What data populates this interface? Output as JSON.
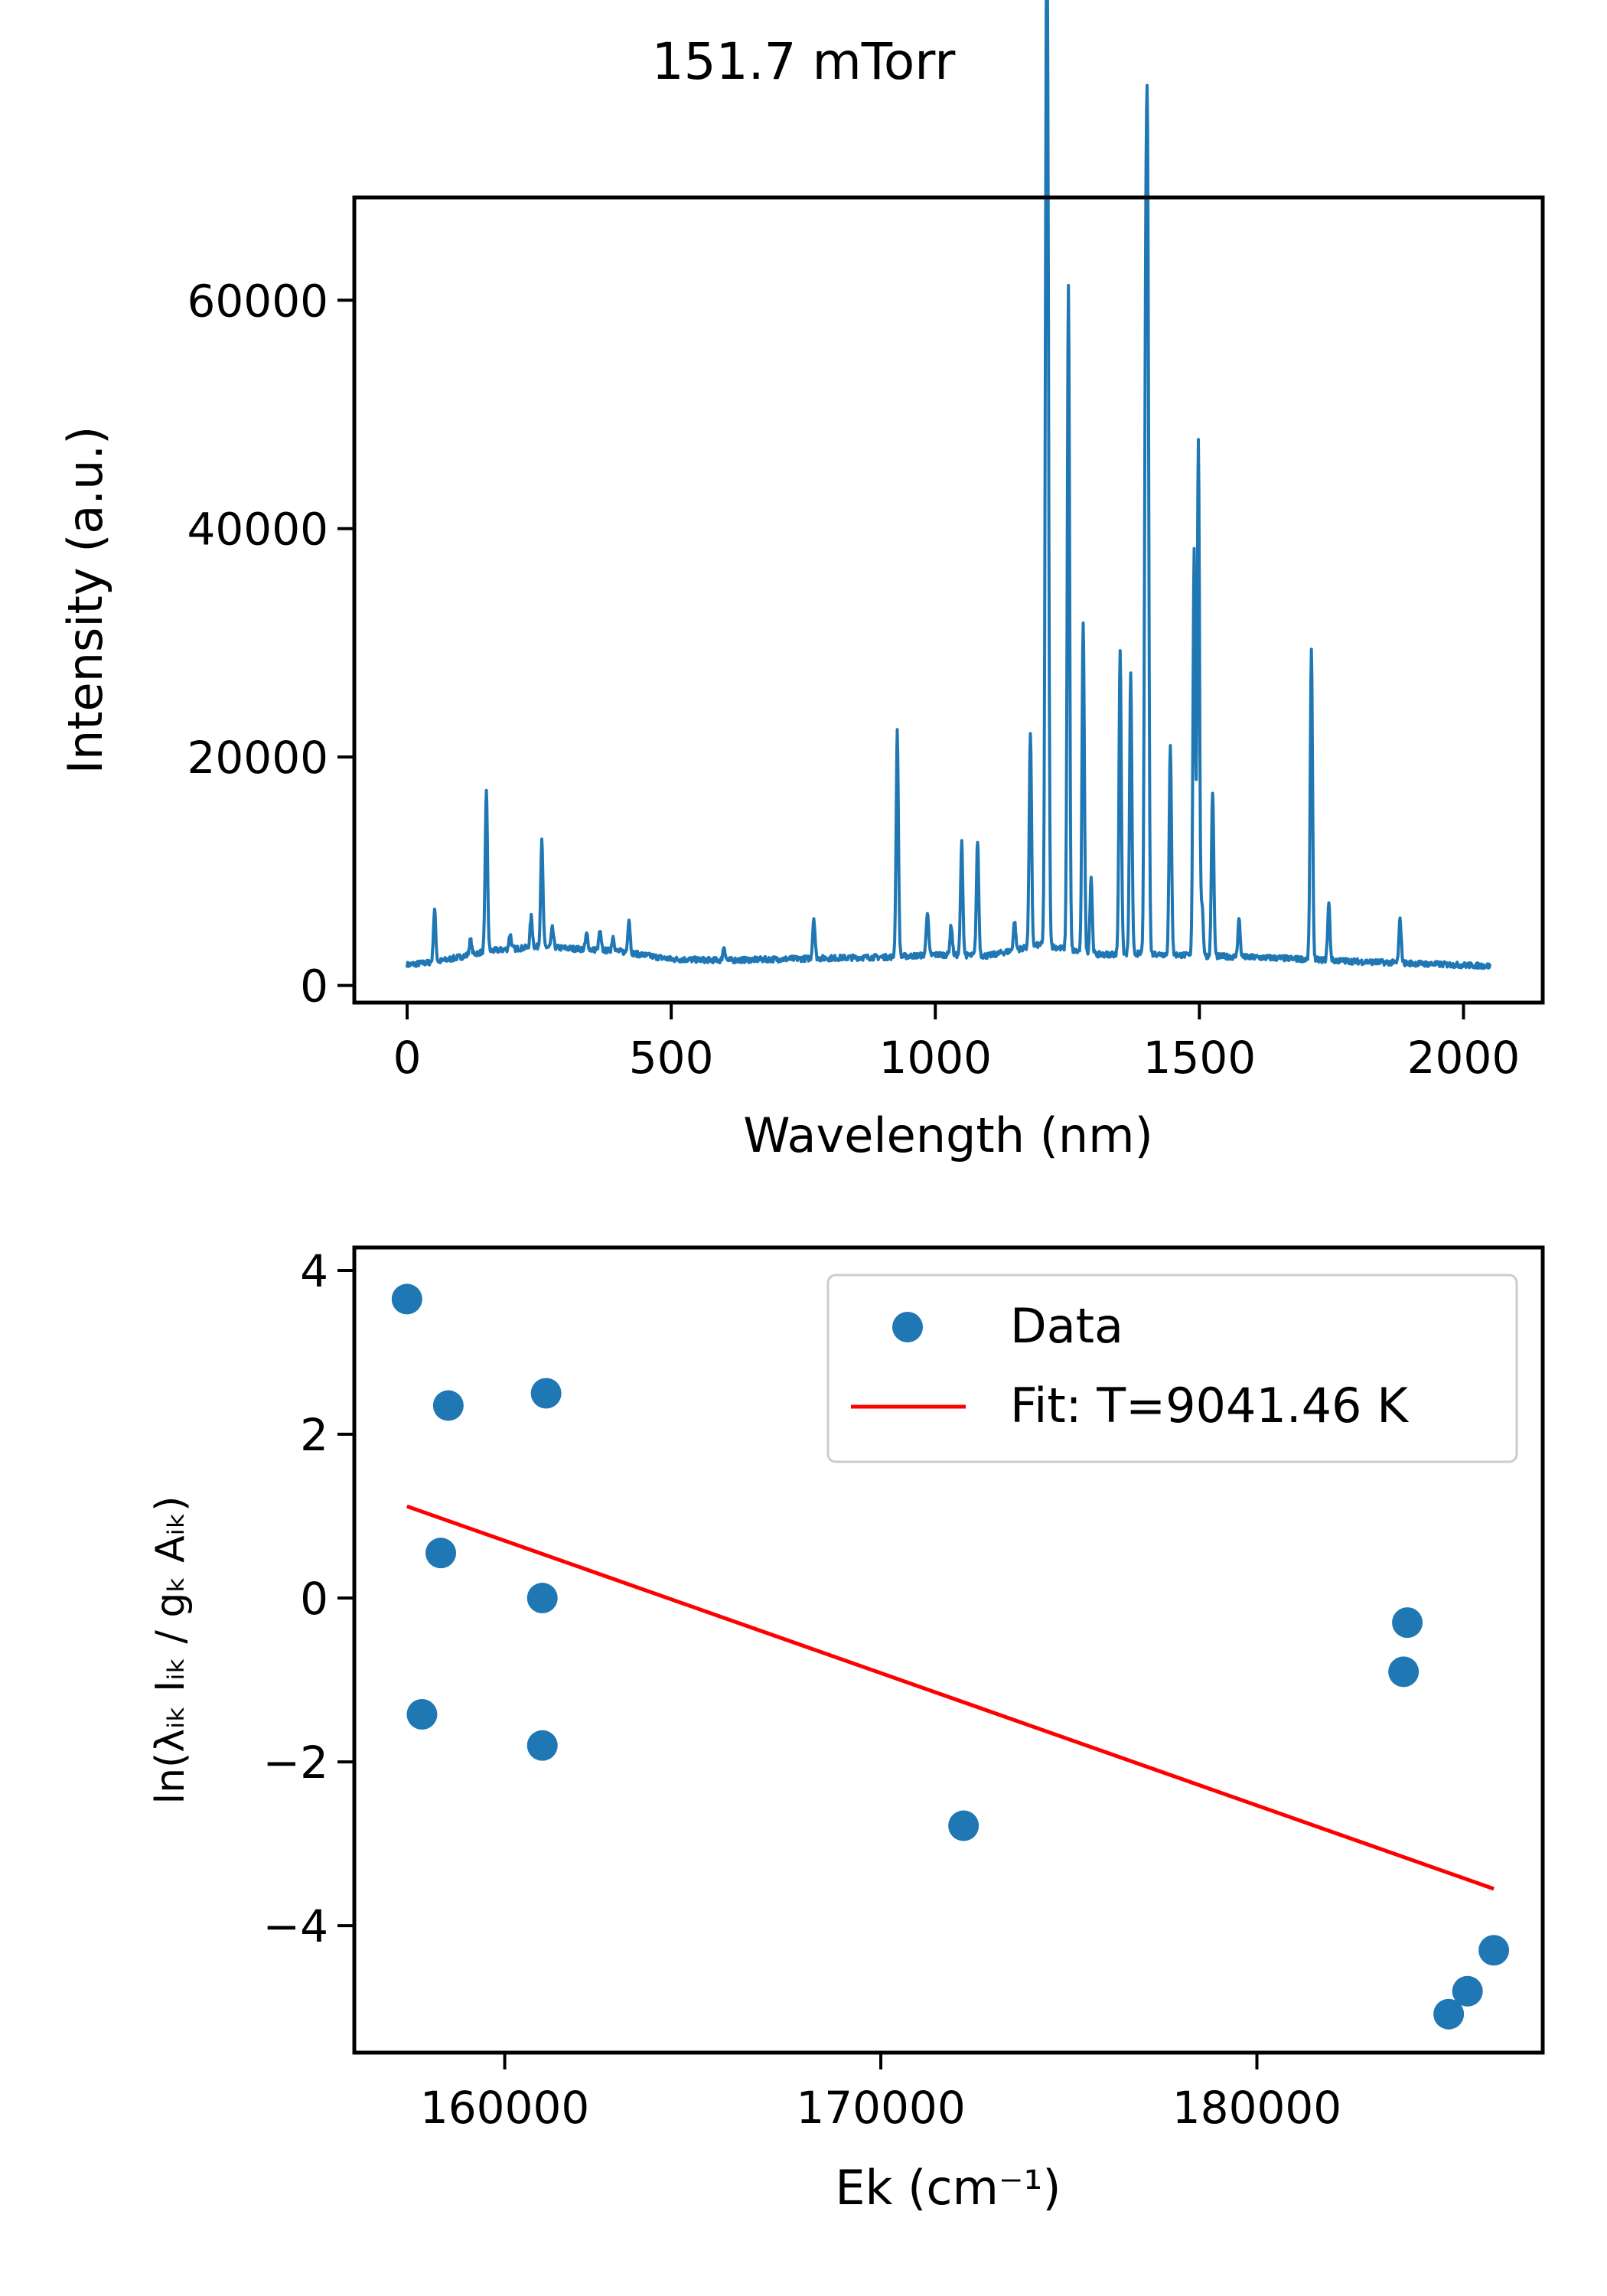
{
  "figure": {
    "title": "151.7 mTorr"
  },
  "chart_data": [
    {
      "type": "line",
      "xlabel": "Wavelength (nm)",
      "ylabel": "Intensity (a.u.)",
      "xlim": [
        -100,
        2150
      ],
      "ylim": [
        -1500,
        69000
      ],
      "xticks": [
        0,
        500,
        1000,
        1500,
        2000
      ],
      "yticks": [
        0,
        20000,
        40000,
        60000
      ],
      "color": "#1f77b4",
      "baseline": {
        "points": [
          [
            0,
            1800
          ],
          [
            60,
            2100
          ],
          [
            150,
            3000
          ],
          [
            250,
            3400
          ],
          [
            400,
            3000
          ],
          [
            500,
            2300
          ],
          [
            600,
            2200
          ],
          [
            800,
            2400
          ],
          [
            920,
            2500
          ],
          [
            1000,
            2700
          ],
          [
            1100,
            2600
          ],
          [
            1200,
            3600
          ],
          [
            1300,
            2700
          ],
          [
            1400,
            2800
          ],
          [
            1500,
            2600
          ],
          [
            1650,
            2400
          ],
          [
            1800,
            2100
          ],
          [
            2050,
            1700
          ]
        ]
      },
      "peaks": [
        {
          "x": 52,
          "y": 6600
        },
        {
          "x": 120,
          "y": 4000
        },
        {
          "x": 150,
          "y": 17200
        },
        {
          "x": 195,
          "y": 4500
        },
        {
          "x": 235,
          "y": 6000
        },
        {
          "x": 255,
          "y": 12600
        },
        {
          "x": 275,
          "y": 5000
        },
        {
          "x": 340,
          "y": 4500
        },
        {
          "x": 365,
          "y": 4700
        },
        {
          "x": 390,
          "y": 4300
        },
        {
          "x": 420,
          "y": 5800
        },
        {
          "x": 600,
          "y": 3400
        },
        {
          "x": 770,
          "y": 5900
        },
        {
          "x": 928,
          "y": 22200
        },
        {
          "x": 985,
          "y": 6500
        },
        {
          "x": 1030,
          "y": 5300
        },
        {
          "x": 1050,
          "y": 12500
        },
        {
          "x": 1080,
          "y": 12700
        },
        {
          "x": 1150,
          "y": 5600
        },
        {
          "x": 1180,
          "y": 22000
        },
        {
          "x": 1210,
          "y": 65600
        },
        {
          "x": 1213,
          "y": 55000
        },
        {
          "x": 1252,
          "y": 61200
        },
        {
          "x": 1280,
          "y": 31900
        },
        {
          "x": 1295,
          "y": 9500
        },
        {
          "x": 1350,
          "y": 29400
        },
        {
          "x": 1370,
          "y": 27200
        },
        {
          "x": 1398,
          "y": 51700
        },
        {
          "x": 1402,
          "y": 65600
        },
        {
          "x": 1445,
          "y": 20900
        },
        {
          "x": 1490,
          "y": 38300
        },
        {
          "x": 1498,
          "y": 47500
        },
        {
          "x": 1505,
          "y": 7000
        },
        {
          "x": 1525,
          "y": 17000
        },
        {
          "x": 1575,
          "y": 5800
        },
        {
          "x": 1712,
          "y": 29200
        },
        {
          "x": 1745,
          "y": 7200
        },
        {
          "x": 1880,
          "y": 5800
        }
      ]
    },
    {
      "type": "scatter",
      "xlabel": "Ek (cm⁻¹)",
      "ylabel": "ln(λᵢₖ Iᵢₖ / gₖ Aᵢₖ)",
      "xlim": [
        156000,
        187600
      ],
      "ylim": [
        -5.55,
        4.28
      ],
      "xticks": [
        160000,
        170000,
        180000
      ],
      "yticks": [
        4,
        2,
        0,
        -2,
        -4
      ],
      "legend": "top-right",
      "series": [
        {
          "name": "Data",
          "color": "#1f77b4",
          "points": [
            [
              157400,
              3.65
            ],
            [
              158500,
              2.35
            ],
            [
              161100,
              2.5
            ],
            [
              158300,
              0.55
            ],
            [
              161000,
              0.0
            ],
            [
              157800,
              -1.42
            ],
            [
              161000,
              -1.8
            ],
            [
              172200,
              -2.78
            ],
            [
              184000,
              -0.3
            ],
            [
              183900,
              -0.9
            ],
            [
              186300,
              -4.3
            ],
            [
              185600,
              -4.8
            ],
            [
              185100,
              -5.08
            ]
          ]
        },
        {
          "name": "Fit: T=9041.46 K",
          "color": "#ff0000",
          "points": [
            [
              157400,
              1.12
            ],
            [
              186300,
              -3.55
            ]
          ]
        }
      ]
    }
  ]
}
